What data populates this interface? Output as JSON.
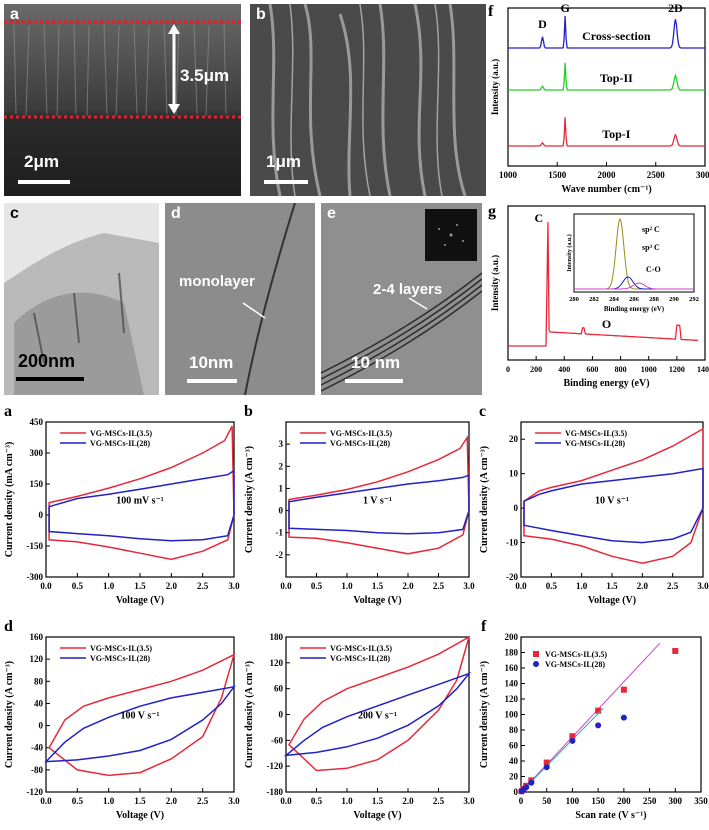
{
  "photos": {
    "a": {
      "label": "a",
      "thickness": "3.5μm",
      "scale": "2μm"
    },
    "b": {
      "label": "b",
      "scale": "1μm"
    },
    "c": {
      "label": "c",
      "scale": "200nm"
    },
    "d": {
      "label": "d",
      "scale": "10nm",
      "annotation": "monolayer"
    },
    "e": {
      "label": "e",
      "scale": "10 nm",
      "annotation": "2-4 layers"
    }
  },
  "colors": {
    "red": "#e8283a",
    "blue": "#2121c8",
    "green": "#22d022",
    "olive": "#9a8a1a",
    "magenta": "#cc44cc",
    "teal": "#22aaaa"
  },
  "chart_data": [
    {
      "id": "raman",
      "letter": "f",
      "type": "line",
      "xlabel": "Wave number (cm⁻¹)",
      "ylabel": "Intensity (a.u.)",
      "xlim": [
        1000,
        3000
      ],
      "xticks": [
        "1000",
        "1500",
        "2000",
        "2500",
        "3000"
      ],
      "peak_labels": [
        "D",
        "G",
        "2D"
      ],
      "series": [
        {
          "name": "Cross-section",
          "color": "#2121c8"
        },
        {
          "name": "Top-II",
          "color": "#22d022"
        },
        {
          "name": "Top-I",
          "color": "#e8283a"
        }
      ]
    },
    {
      "id": "xps",
      "letter": "g",
      "type": "line",
      "xlabel": "Binding energy (eV)",
      "ylabel": "Intensity (a.u.)",
      "xlim": [
        0,
        1400
      ],
      "xticks": [
        "0",
        "200",
        "400",
        "600",
        "800",
        "1000",
        "1200",
        "1400"
      ],
      "peak_labels": [
        "C",
        "O"
      ],
      "inset": {
        "xlabel": "Binding energy (eV)",
        "ylabel": "Intensity (a.u.)",
        "xticks": [
          "280",
          "282",
          "284",
          "286",
          "288",
          "290",
          "292"
        ],
        "labels": [
          "sp² C",
          "sp³ C",
          "C-O"
        ]
      }
    },
    {
      "id": "cv100mV",
      "letter": "a",
      "type": "line",
      "rate": "100 mV s⁻¹",
      "xlabel": "Voltage (V)",
      "ylabel": "Current density (mA cm⁻³)",
      "xlim": [
        0.0,
        3.0
      ],
      "ylim": [
        -300,
        450
      ],
      "xticks": [
        "0.0",
        "0.5",
        "1.0",
        "1.5",
        "2.0",
        "2.5",
        "3.0"
      ],
      "yticks": [
        "-300",
        "-150",
        "0",
        "150",
        "300",
        "450"
      ],
      "series": [
        {
          "name": "VG-MSCs-IL(3.5)",
          "color": "#e8283a",
          "upper": [
            [
              0.05,
              60
            ],
            [
              0.5,
              90
            ],
            [
              1.0,
              130
            ],
            [
              1.5,
              175
            ],
            [
              2.0,
              230
            ],
            [
              2.5,
              300
            ],
            [
              2.85,
              360
            ],
            [
              2.97,
              430
            ]
          ],
          "lower": [
            [
              3.0,
              0
            ],
            [
              2.9,
              -120
            ],
            [
              2.5,
              -175
            ],
            [
              2.0,
              -215
            ],
            [
              1.5,
              -185
            ],
            [
              1.0,
              -155
            ],
            [
              0.5,
              -130
            ],
            [
              0.05,
              -120
            ]
          ]
        },
        {
          "name": "VG-MSCs-IL(28)",
          "color": "#2121c8",
          "upper": [
            [
              0.05,
              40
            ],
            [
              0.5,
              80
            ],
            [
              1.0,
              100
            ],
            [
              1.5,
              125
            ],
            [
              2.0,
              150
            ],
            [
              2.5,
              175
            ],
            [
              2.9,
              195
            ],
            [
              3.0,
              215
            ]
          ],
          "lower": [
            [
              3.0,
              0
            ],
            [
              2.9,
              -100
            ],
            [
              2.5,
              -120
            ],
            [
              2.0,
              -125
            ],
            [
              1.5,
              -115
            ],
            [
              1.0,
              -100
            ],
            [
              0.5,
              -90
            ],
            [
              0.05,
              -80
            ]
          ]
        }
      ]
    },
    {
      "id": "cv1V",
      "letter": "b",
      "type": "line",
      "rate": "1 V s⁻¹",
      "xlabel": "Voltage (V)",
      "ylabel": "Current density (A cm⁻³)",
      "xlim": [
        0.0,
        3.0
      ],
      "ylim": [
        -3,
        4
      ],
      "xticks": [
        "0.0",
        "0.5",
        "1.0",
        "1.5",
        "2.0",
        "2.5",
        "3.0"
      ],
      "yticks": [
        "-2",
        "-1",
        "0",
        "1",
        "2",
        "3"
      ],
      "series": [
        {
          "name": "VG-MSCs-IL(3.5)",
          "color": "#e8283a",
          "upper": [
            [
              0.05,
              0.5
            ],
            [
              0.5,
              0.7
            ],
            [
              1.0,
              0.95
            ],
            [
              1.5,
              1.3
            ],
            [
              2.0,
              1.75
            ],
            [
              2.5,
              2.3
            ],
            [
              2.85,
              2.8
            ],
            [
              2.97,
              3.3
            ]
          ],
          "lower": [
            [
              3.0,
              0.0
            ],
            [
              2.9,
              -1.1
            ],
            [
              2.5,
              -1.7
            ],
            [
              2.0,
              -1.95
            ],
            [
              1.5,
              -1.7
            ],
            [
              1.0,
              -1.45
            ],
            [
              0.5,
              -1.25
            ],
            [
              0.05,
              -1.2
            ]
          ]
        },
        {
          "name": "VG-MSCs-IL(28)",
          "color": "#2121c8",
          "upper": [
            [
              0.05,
              0.4
            ],
            [
              0.5,
              0.6
            ],
            [
              1.0,
              0.8
            ],
            [
              1.5,
              1.0
            ],
            [
              2.0,
              1.2
            ],
            [
              2.5,
              1.35
            ],
            [
              2.9,
              1.5
            ],
            [
              3.0,
              1.6
            ]
          ],
          "lower": [
            [
              3.0,
              0.0
            ],
            [
              2.9,
              -0.85
            ],
            [
              2.5,
              -1.0
            ],
            [
              2.0,
              -1.05
            ],
            [
              1.5,
              -1.0
            ],
            [
              1.0,
              -0.9
            ],
            [
              0.5,
              -0.85
            ],
            [
              0.05,
              -0.8
            ]
          ]
        }
      ]
    },
    {
      "id": "cv10V",
      "letter": "c",
      "type": "line",
      "rate": "10 V s⁻¹",
      "xlabel": "Voltage (V)",
      "ylabel": "Current density (A cm⁻³)",
      "xlim": [
        0.0,
        3.0
      ],
      "ylim": [
        -20,
        25
      ],
      "xticks": [
        "0.0",
        "0.5",
        "1.0",
        "1.5",
        "2.0",
        "2.5",
        "3.0"
      ],
      "yticks": [
        "-20",
        "-10",
        "0",
        "10",
        "20"
      ],
      "series": [
        {
          "name": "VG-MSCs-IL(3.5)",
          "color": "#e8283a",
          "upper": [
            [
              0.05,
              2
            ],
            [
              0.3,
              5
            ],
            [
              0.5,
              6
            ],
            [
              1.0,
              8
            ],
            [
              1.5,
              11
            ],
            [
              2.0,
              14
            ],
            [
              2.5,
              18
            ],
            [
              3.0,
              23
            ]
          ],
          "lower": [
            [
              3.0,
              0
            ],
            [
              2.8,
              -10
            ],
            [
              2.5,
              -14
            ],
            [
              2.0,
              -16
            ],
            [
              1.5,
              -14
            ],
            [
              1.0,
              -11
            ],
            [
              0.5,
              -9
            ],
            [
              0.05,
              -8
            ]
          ]
        },
        {
          "name": "VG-MSCs-IL(28)",
          "color": "#2121c8",
          "upper": [
            [
              0.05,
              2
            ],
            [
              0.3,
              4
            ],
            [
              0.5,
              5
            ],
            [
              1.0,
              7
            ],
            [
              1.5,
              8
            ],
            [
              2.0,
              9
            ],
            [
              2.5,
              10
            ],
            [
              3.0,
              11.5
            ]
          ],
          "lower": [
            [
              3.0,
              0
            ],
            [
              2.8,
              -7
            ],
            [
              2.5,
              -9
            ],
            [
              2.0,
              -10
            ],
            [
              1.5,
              -9.5
            ],
            [
              1.0,
              -8
            ],
            [
              0.5,
              -6.5
            ],
            [
              0.05,
              -5
            ]
          ]
        }
      ]
    },
    {
      "id": "cv100V",
      "letter": "d",
      "type": "line",
      "rate": "100 V s⁻¹",
      "xlabel": "Voltage (V)",
      "ylabel": "Current density (A cm⁻³)",
      "xlim": [
        0.0,
        3.0
      ],
      "ylim": [
        -120,
        160
      ],
      "xticks": [
        "0.0",
        "0.5",
        "1.0",
        "1.5",
        "2.0",
        "2.5",
        "3.0"
      ],
      "yticks": [
        "-120",
        "-80",
        "-40",
        "0",
        "40",
        "80",
        "120",
        "160"
      ],
      "series": [
        {
          "name": "VG-MSCs-IL(3.5)",
          "color": "#e8283a",
          "upper": [
            [
              0.05,
              -40
            ],
            [
              0.3,
              10
            ],
            [
              0.6,
              35
            ],
            [
              1.0,
              50
            ],
            [
              1.5,
              65
            ],
            [
              2.0,
              80
            ],
            [
              2.5,
              100
            ],
            [
              3.0,
              128
            ]
          ],
          "lower": [
            [
              3.0,
              128
            ],
            [
              2.8,
              50
            ],
            [
              2.5,
              -20
            ],
            [
              2.0,
              -60
            ],
            [
              1.5,
              -85
            ],
            [
              1.0,
              -90
            ],
            [
              0.5,
              -80
            ],
            [
              0.05,
              -40
            ]
          ]
        },
        {
          "name": "VG-MSCs-IL(28)",
          "color": "#2121c8",
          "upper": [
            [
              0.0,
              -65
            ],
            [
              0.3,
              -30
            ],
            [
              0.6,
              -5
            ],
            [
              1.0,
              15
            ],
            [
              1.5,
              35
            ],
            [
              2.0,
              50
            ],
            [
              2.5,
              60
            ],
            [
              3.0,
              70
            ]
          ],
          "lower": [
            [
              3.0,
              70
            ],
            [
              2.8,
              40
            ],
            [
              2.5,
              10
            ],
            [
              2.0,
              -25
            ],
            [
              1.5,
              -45
            ],
            [
              1.0,
              -55
            ],
            [
              0.5,
              -62
            ],
            [
              0.0,
              -65
            ]
          ]
        }
      ]
    },
    {
      "id": "cv200V",
      "letter": "",
      "type": "line",
      "rate": "200 V s⁻¹",
      "xlabel": "Voltage (V)",
      "ylabel": "Current density (A cm⁻³)",
      "xlim": [
        0.0,
        3.0
      ],
      "ylim": [
        -180,
        180
      ],
      "xticks": [
        "0.0",
        "0.5",
        "1.0",
        "1.5",
        "2.0",
        "2.5",
        "3.0"
      ],
      "yticks": [
        "-180",
        "-120",
        "-60",
        "0",
        "60",
        "120",
        "180"
      ],
      "series": [
        {
          "name": "VG-MSCs-IL(3.5)",
          "color": "#e8283a",
          "upper": [
            [
              0.05,
              -70
            ],
            [
              0.3,
              -10
            ],
            [
              0.6,
              30
            ],
            [
              1.0,
              60
            ],
            [
              1.5,
              85
            ],
            [
              2.0,
              110
            ],
            [
              2.5,
              140
            ],
            [
              3.0,
              180
            ]
          ],
          "lower": [
            [
              3.0,
              180
            ],
            [
              2.8,
              80
            ],
            [
              2.5,
              10
            ],
            [
              2.0,
              -60
            ],
            [
              1.5,
              -105
            ],
            [
              1.0,
              -125
            ],
            [
              0.5,
              -130
            ],
            [
              0.05,
              -70
            ]
          ]
        },
        {
          "name": "VG-MSCs-IL(28)",
          "color": "#2121c8",
          "upper": [
            [
              0.0,
              -95
            ],
            [
              0.3,
              -60
            ],
            [
              0.6,
              -30
            ],
            [
              1.0,
              -5
            ],
            [
              1.5,
              20
            ],
            [
              2.0,
              45
            ],
            [
              2.5,
              70
            ],
            [
              3.0,
              95
            ]
          ],
          "lower": [
            [
              3.0,
              95
            ],
            [
              2.8,
              60
            ],
            [
              2.5,
              20
            ],
            [
              2.0,
              -25
            ],
            [
              1.5,
              -55
            ],
            [
              1.0,
              -75
            ],
            [
              0.5,
              -88
            ],
            [
              0.0,
              -95
            ]
          ]
        }
      ]
    },
    {
      "id": "scanrate",
      "letter": "f",
      "type": "scatter",
      "xlabel": "Scan rate (V s⁻¹)",
      "ylabel": "Current density (A cm⁻³)",
      "xlim": [
        0,
        350
      ],
      "ylim": [
        0,
        200
      ],
      "xticks": [
        "0",
        "50",
        "100",
        "150",
        "200",
        "250",
        "300",
        "350"
      ],
      "yticks": [
        "0",
        "20",
        "40",
        "60",
        "80",
        "100",
        "120",
        "140",
        "160",
        "180",
        "200"
      ],
      "series": [
        {
          "name": "VG-MSCs-IL(3.5)",
          "color": "#e8283a",
          "marker": "square",
          "x": [
            1,
            5,
            10,
            20,
            50,
            100,
            150,
            200,
            300
          ],
          "y": [
            1,
            4,
            8,
            15,
            38,
            72,
            105,
            132,
            182
          ],
          "fit": [
            [
              0,
              -3
            ],
            [
              270,
              192
            ]
          ],
          "fit_color": "#cc44cc"
        },
        {
          "name": "VG-MSCs-IL(28)",
          "color": "#2121c8",
          "marker": "circle",
          "x": [
            1,
            5,
            10,
            20,
            50,
            100,
            150,
            200
          ],
          "y": [
            1,
            3,
            6,
            12,
            32,
            66,
            86,
            96
          ],
          "fit": [
            [
              0,
              -3
            ],
            [
              160,
              108
            ]
          ],
          "fit_color": "#22aaaa"
        }
      ]
    }
  ]
}
